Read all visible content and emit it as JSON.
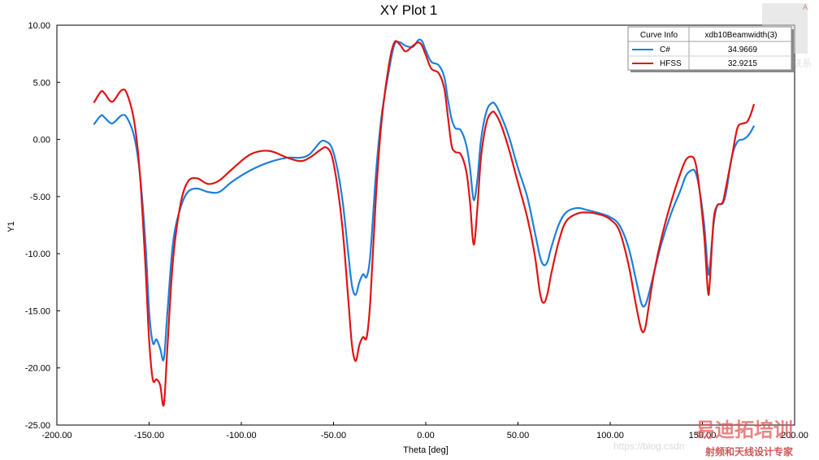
{
  "chart_data": {
    "type": "line",
    "title": "XY Plot 1",
    "xlabel": "Theta [deg]",
    "ylabel": "Y1",
    "xlim": [
      -200,
      200
    ],
    "ylim": [
      -25,
      10
    ],
    "x_ticks": [
      "-200.00",
      "-150.00",
      "-100.00",
      "-50.00",
      "0.00",
      "50.00",
      "100.00",
      "150.00",
      "200.00"
    ],
    "y_ticks": [
      "10.00",
      "5.00",
      "0.00",
      "-5.00",
      "-10.00",
      "-15.00",
      "-20.00",
      "-25.00"
    ],
    "grid": false,
    "legend": {
      "placement": "top-right",
      "header_left": "Curve Info",
      "header_right": "xdb10Beamwidth(3)",
      "entries": [
        {
          "name": "C#",
          "value": "34.9669",
          "color": "#1e7fdc"
        },
        {
          "name": "HFSS",
          "value": "32.9215",
          "color": "#e01414"
        }
      ]
    },
    "series": [
      {
        "name": "C#",
        "color": "#1e7fdc",
        "points": [
          [
            -180,
            1.3
          ],
          [
            -176,
            2.1
          ],
          [
            -174,
            1.9
          ],
          [
            -170,
            1.4
          ],
          [
            -165,
            2.1
          ],
          [
            -162,
            1.9
          ],
          [
            -158,
            0.2
          ],
          [
            -155,
            -3
          ],
          [
            -152,
            -9
          ],
          [
            -150,
            -15
          ],
          [
            -148,
            -17.8
          ],
          [
            -146,
            -17.5
          ],
          [
            -144,
            -18.3
          ],
          [
            -142,
            -19.2
          ],
          [
            -140,
            -15
          ],
          [
            -137,
            -9
          ],
          [
            -133,
            -6
          ],
          [
            -129,
            -4.6
          ],
          [
            -124,
            -4.3
          ],
          [
            -118,
            -4.6
          ],
          [
            -112,
            -4.6
          ],
          [
            -105,
            -3.7
          ],
          [
            -95,
            -2.7
          ],
          [
            -85,
            -2
          ],
          [
            -75,
            -1.6
          ],
          [
            -68,
            -1.6
          ],
          [
            -63,
            -1.3
          ],
          [
            -57,
            -0.2
          ],
          [
            -54,
            -0.2
          ],
          [
            -51,
            -0.7
          ],
          [
            -48,
            -2.5
          ],
          [
            -45,
            -5.5
          ],
          [
            -42,
            -10
          ],
          [
            -40,
            -12.8
          ],
          [
            -38,
            -13.6
          ],
          [
            -36,
            -12.5
          ],
          [
            -34,
            -11.8
          ],
          [
            -32,
            -12
          ],
          [
            -30,
            -10
          ],
          [
            -27,
            -3
          ],
          [
            -24,
            2
          ],
          [
            -20,
            6
          ],
          [
            -17,
            8.3
          ],
          [
            -14,
            8.5
          ],
          [
            -11,
            8.2
          ],
          [
            -7,
            8.1
          ],
          [
            -4,
            8.7
          ],
          [
            -2,
            8.6
          ],
          [
            0,
            7.8
          ],
          [
            3,
            6.8
          ],
          [
            7,
            6.5
          ],
          [
            10,
            5.5
          ],
          [
            12,
            3.5
          ],
          [
            14,
            1.8
          ],
          [
            16,
            1
          ],
          [
            19,
            0.8
          ],
          [
            22,
            -0.5
          ],
          [
            24,
            -2.5
          ],
          [
            26,
            -5.3
          ],
          [
            28,
            -3.5
          ],
          [
            30,
            0
          ],
          [
            33,
            2.5
          ],
          [
            36,
            3.2
          ],
          [
            38,
            3
          ],
          [
            41,
            2
          ],
          [
            45,
            0.3
          ],
          [
            50,
            -2.5
          ],
          [
            55,
            -5
          ],
          [
            59,
            -8
          ],
          [
            62,
            -10.3
          ],
          [
            64,
            -11
          ],
          [
            66,
            -10.7
          ],
          [
            68,
            -9.5
          ],
          [
            72,
            -7.5
          ],
          [
            76,
            -6.4
          ],
          [
            82,
            -6
          ],
          [
            88,
            -6.2
          ],
          [
            95,
            -6.5
          ],
          [
            100,
            -6.8
          ],
          [
            105,
            -7.5
          ],
          [
            110,
            -9.5
          ],
          [
            114,
            -12.3
          ],
          [
            117,
            -14.4
          ],
          [
            119,
            -14.5
          ],
          [
            121,
            -13.5
          ],
          [
            124,
            -11.5
          ],
          [
            128,
            -9
          ],
          [
            133,
            -6.5
          ],
          [
            138,
            -4.5
          ],
          [
            141,
            -3.2
          ],
          [
            144,
            -2.7
          ],
          [
            146,
            -2.8
          ],
          [
            148,
            -4
          ],
          [
            151,
            -7.5
          ],
          [
            153,
            -11.5
          ],
          [
            154,
            -11.2
          ],
          [
            156,
            -7.5
          ],
          [
            158,
            -5.8
          ],
          [
            161,
            -5.6
          ],
          [
            163,
            -4.5
          ],
          [
            166,
            -1.5
          ],
          [
            169,
            -0.2
          ],
          [
            172,
            0
          ],
          [
            174,
            0.2
          ],
          [
            176,
            0.6
          ],
          [
            178,
            1.2
          ]
        ]
      },
      {
        "name": "HFSS",
        "color": "#e01414",
        "points": [
          [
            -180,
            3.2
          ],
          [
            -176,
            4.2
          ],
          [
            -174,
            4
          ],
          [
            -170,
            3.3
          ],
          [
            -165,
            4.3
          ],
          [
            -162,
            4
          ],
          [
            -158,
            1.5
          ],
          [
            -155,
            -3
          ],
          [
            -152,
            -11
          ],
          [
            -150,
            -17.5
          ],
          [
            -148,
            -21
          ],
          [
            -146,
            -21
          ],
          [
            -144,
            -21.5
          ],
          [
            -142,
            -23.2
          ],
          [
            -140,
            -18
          ],
          [
            -137,
            -10.5
          ],
          [
            -133,
            -5.7
          ],
          [
            -129,
            -3.7
          ],
          [
            -124,
            -3.4
          ],
          [
            -118,
            -3.9
          ],
          [
            -112,
            -3.6
          ],
          [
            -105,
            -2.6
          ],
          [
            -95,
            -1.3
          ],
          [
            -85,
            -1
          ],
          [
            -75,
            -1.6
          ],
          [
            -68,
            -1.9
          ],
          [
            -63,
            -1.6
          ],
          [
            -57,
            -0.9
          ],
          [
            -54,
            -0.7
          ],
          [
            -51,
            -1.4
          ],
          [
            -48,
            -4
          ],
          [
            -45,
            -8
          ],
          [
            -42,
            -14
          ],
          [
            -40,
            -18
          ],
          [
            -38,
            -19.4
          ],
          [
            -36,
            -18
          ],
          [
            -34,
            -17.3
          ],
          [
            -32,
            -17.3
          ],
          [
            -30,
            -14
          ],
          [
            -27,
            -5
          ],
          [
            -24,
            1.5
          ],
          [
            -20,
            6.5
          ],
          [
            -17,
            8.5
          ],
          [
            -14,
            8.3
          ],
          [
            -11,
            7.7
          ],
          [
            -7,
            8.2
          ],
          [
            -4,
            8.5
          ],
          [
            -2,
            8.2
          ],
          [
            0,
            7.4
          ],
          [
            3,
            6.2
          ],
          [
            7,
            5.8
          ],
          [
            10,
            4.5
          ],
          [
            12,
            2
          ],
          [
            14,
            -0.5
          ],
          [
            16,
            -1.1
          ],
          [
            19,
            -1.3
          ],
          [
            22,
            -2.8
          ],
          [
            24,
            -5.5
          ],
          [
            26,
            -9.2
          ],
          [
            28,
            -6
          ],
          [
            30,
            -1.5
          ],
          [
            33,
            1.5
          ],
          [
            36,
            2.4
          ],
          [
            38,
            2.2
          ],
          [
            41,
            1.2
          ],
          [
            45,
            -0.8
          ],
          [
            50,
            -3.8
          ],
          [
            55,
            -6.8
          ],
          [
            59,
            -10
          ],
          [
            62,
            -13.5
          ],
          [
            64,
            -14.3
          ],
          [
            66,
            -13.5
          ],
          [
            68,
            -11.8
          ],
          [
            72,
            -9
          ],
          [
            76,
            -7.2
          ],
          [
            82,
            -6.5
          ],
          [
            88,
            -6.4
          ],
          [
            95,
            -6.6
          ],
          [
            100,
            -7
          ],
          [
            105,
            -8
          ],
          [
            110,
            -11
          ],
          [
            114,
            -14.5
          ],
          [
            117,
            -16.7
          ],
          [
            119,
            -16.5
          ],
          [
            121,
            -14.5
          ],
          [
            124,
            -11.5
          ],
          [
            128,
            -8.5
          ],
          [
            133,
            -5.5
          ],
          [
            138,
            -3
          ],
          [
            141,
            -1.8
          ],
          [
            144,
            -1.5
          ],
          [
            146,
            -1.9
          ],
          [
            148,
            -3.8
          ],
          [
            151,
            -8.5
          ],
          [
            153,
            -13.3
          ],
          [
            154,
            -12.5
          ],
          [
            156,
            -7.2
          ],
          [
            158,
            -5.8
          ],
          [
            161,
            -5.5
          ],
          [
            163,
            -4
          ],
          [
            166,
            -1.5
          ],
          [
            169,
            1
          ],
          [
            172,
            1.4
          ],
          [
            174,
            1.5
          ],
          [
            176,
            2.1
          ],
          [
            178,
            3.1
          ]
        ]
      }
    ]
  },
  "watermark": {
    "source_text": "https://blog.csdn",
    "corner_badge": "A",
    "wechat_text": "微信",
    "brand_text": "易迪拓培训",
    "tagline_text": "射频和天线设计专家",
    "side_text": "联系"
  }
}
